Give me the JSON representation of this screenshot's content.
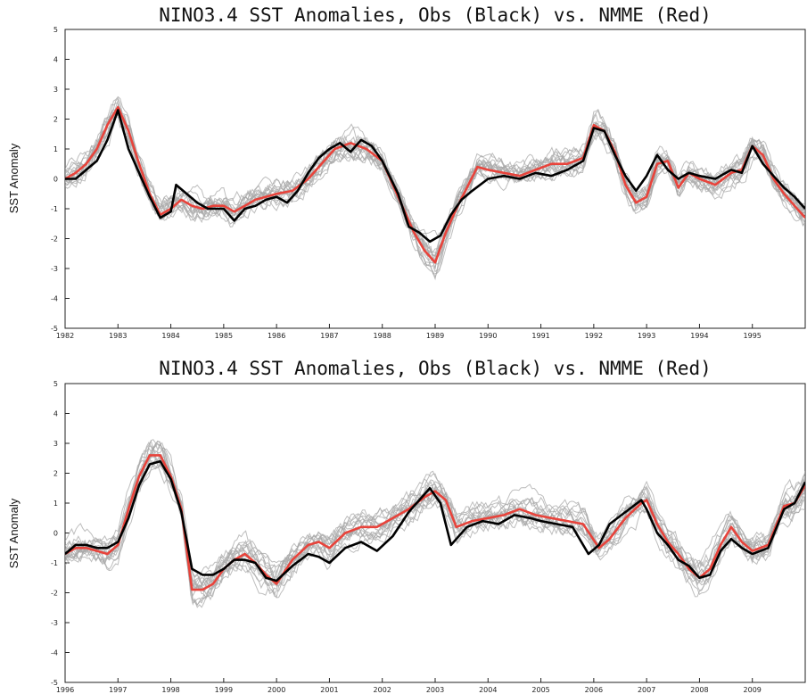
{
  "chart_data": [
    {
      "type": "line",
      "title": "NINO3.4 SST Anomalies, Obs (Black) vs. NMME (Red)",
      "xlabel": "",
      "ylabel": "SST Anomaly",
      "ylim": [
        -5,
        5
      ],
      "xlim": [
        1982,
        1996
      ],
      "yticks": [
        5,
        4,
        3,
        2,
        1,
        0,
        -1,
        -2,
        -3,
        -4,
        -5
      ],
      "xticks": [
        "1982",
        "1983",
        "1984",
        "1985",
        "1986",
        "1987",
        "1988",
        "1989",
        "1990",
        "1991",
        "1992",
        "1993",
        "1994",
        "1995"
      ],
      "grid": false,
      "colors": {
        "obs": "#000000",
        "nmme": "#e8433b",
        "members": "#a8a8a8"
      },
      "series": [
        {
          "name": "Obs",
          "color": "#000000",
          "x": [
            1982.0,
            1982.2,
            1982.4,
            1982.6,
            1982.8,
            1983.0,
            1983.2,
            1983.4,
            1983.6,
            1983.8,
            1984.0,
            1984.1,
            1984.3,
            1984.5,
            1984.7,
            1985.0,
            1985.2,
            1985.4,
            1985.6,
            1985.8,
            1986.0,
            1986.2,
            1986.4,
            1986.6,
            1986.8,
            1987.0,
            1987.2,
            1987.4,
            1987.6,
            1987.8,
            1988.0,
            1988.3,
            1988.5,
            1988.7,
            1988.9,
            1989.1,
            1989.3,
            1989.5,
            1989.7,
            1990.0,
            1990.3,
            1990.6,
            1990.9,
            1991.2,
            1991.5,
            1991.8,
            1992.0,
            1992.2,
            1992.4,
            1992.6,
            1992.8,
            1993.0,
            1993.2,
            1993.4,
            1993.6,
            1993.8,
            1994.0,
            1994.3,
            1994.6,
            1994.8,
            1995.0,
            1995.2,
            1995.4,
            1995.6,
            1995.8,
            1996.0
          ],
          "y": [
            0.0,
            0.0,
            0.3,
            0.6,
            1.3,
            2.3,
            1.0,
            0.2,
            -0.6,
            -1.3,
            -1.1,
            -0.2,
            -0.5,
            -0.8,
            -1.0,
            -1.0,
            -1.4,
            -1.0,
            -0.9,
            -0.7,
            -0.6,
            -0.8,
            -0.4,
            0.2,
            0.7,
            1.0,
            1.2,
            0.9,
            1.3,
            1.1,
            0.6,
            -0.5,
            -1.6,
            -1.8,
            -2.1,
            -1.9,
            -1.2,
            -0.7,
            -0.4,
            0.0,
            0.1,
            0.0,
            0.2,
            0.1,
            0.3,
            0.6,
            1.7,
            1.6,
            0.8,
            0.1,
            -0.4,
            0.1,
            0.8,
            0.3,
            0.0,
            0.2,
            0.1,
            0.0,
            0.3,
            0.2,
            1.1,
            0.5,
            0.1,
            -0.3,
            -0.6,
            -1.0
          ]
        },
        {
          "name": "NMME",
          "color": "#e8433b",
          "x": [
            1982.0,
            1982.2,
            1982.4,
            1982.6,
            1982.8,
            1983.0,
            1983.2,
            1983.4,
            1983.6,
            1983.8,
            1984.0,
            1984.2,
            1984.4,
            1984.6,
            1984.8,
            1985.0,
            1985.2,
            1985.4,
            1985.6,
            1985.8,
            1986.0,
            1986.3,
            1986.6,
            1986.9,
            1987.1,
            1987.4,
            1987.7,
            1988.0,
            1988.2,
            1988.4,
            1988.6,
            1988.8,
            1989.0,
            1989.2,
            1989.4,
            1989.6,
            1989.8,
            1990.0,
            1990.3,
            1990.6,
            1990.9,
            1991.2,
            1991.5,
            1991.8,
            1992.0,
            1992.2,
            1992.4,
            1992.6,
            1992.8,
            1993.0,
            1993.2,
            1993.4,
            1993.6,
            1993.8,
            1994.0,
            1994.3,
            1994.6,
            1994.8,
            1995.0,
            1995.2,
            1995.4,
            1995.6,
            1995.8,
            1996.0
          ],
          "y": [
            0.0,
            0.2,
            0.5,
            1.0,
            1.8,
            2.4,
            1.6,
            0.5,
            -0.5,
            -1.2,
            -1.0,
            -0.7,
            -0.9,
            -1.0,
            -0.9,
            -0.9,
            -1.1,
            -0.9,
            -0.7,
            -0.6,
            -0.5,
            -0.4,
            0.0,
            0.6,
            1.0,
            1.2,
            1.0,
            0.6,
            -0.2,
            -1.0,
            -1.8,
            -2.4,
            -2.8,
            -1.8,
            -1.0,
            -0.3,
            0.4,
            0.3,
            0.2,
            0.1,
            0.3,
            0.5,
            0.5,
            0.7,
            1.8,
            1.6,
            0.9,
            -0.2,
            -0.8,
            -0.6,
            0.5,
            0.6,
            -0.3,
            0.2,
            0.0,
            -0.2,
            0.2,
            0.3,
            1.1,
            0.8,
            0.0,
            -0.5,
            -0.9,
            -1.3
          ]
        }
      ]
    },
    {
      "type": "line",
      "title": "NINO3.4 SST Anomalies, Obs (Black) vs. NMME (Red)",
      "xlabel": "",
      "ylabel": "SST Anomaly",
      "ylim": [
        -5,
        5
      ],
      "xlim": [
        1996,
        2010
      ],
      "yticks": [
        5,
        4,
        3,
        2,
        1,
        0,
        -1,
        -2,
        -3,
        -4,
        -5
      ],
      "xticks": [
        "1996",
        "1997",
        "1998",
        "1999",
        "2000",
        "2001",
        "2002",
        "2003",
        "2004",
        "2005",
        "2006",
        "2007",
        "2008",
        "2009"
      ],
      "grid": false,
      "colors": {
        "obs": "#000000",
        "nmme": "#e8433b",
        "members": "#a8a8a8"
      },
      "series": [
        {
          "name": "Obs",
          "color": "#000000",
          "x": [
            1996.0,
            1996.2,
            1996.4,
            1996.6,
            1996.8,
            1997.0,
            1997.2,
            1997.4,
            1997.6,
            1997.8,
            1998.0,
            1998.2,
            1998.4,
            1998.6,
            1998.8,
            1999.0,
            1999.2,
            1999.4,
            1999.6,
            1999.8,
            2000.0,
            2000.3,
            2000.6,
            2000.8,
            2001.0,
            2001.3,
            2001.6,
            2001.9,
            2002.2,
            2002.5,
            2002.7,
            2002.9,
            2003.1,
            2003.3,
            2003.6,
            2003.9,
            2004.2,
            2004.5,
            2004.8,
            2005.0,
            2005.3,
            2005.6,
            2005.9,
            2006.1,
            2006.3,
            2006.6,
            2006.9,
            2007.0,
            2007.2,
            2007.4,
            2007.6,
            2007.8,
            2008.0,
            2008.2,
            2008.4,
            2008.6,
            2008.8,
            2009.0,
            2009.3,
            2009.6,
            2009.8,
            2010.0
          ],
          "y": [
            -0.7,
            -0.4,
            -0.4,
            -0.5,
            -0.5,
            -0.3,
            0.5,
            1.6,
            2.3,
            2.4,
            1.8,
            0.7,
            -1.2,
            -1.4,
            -1.4,
            -1.2,
            -0.9,
            -0.9,
            -1.0,
            -1.5,
            -1.6,
            -1.1,
            -0.7,
            -0.8,
            -1.0,
            -0.5,
            -0.3,
            -0.6,
            -0.1,
            0.7,
            1.1,
            1.5,
            1.0,
            -0.4,
            0.2,
            0.4,
            0.3,
            0.6,
            0.5,
            0.4,
            0.3,
            0.2,
            -0.7,
            -0.4,
            0.3,
            0.7,
            1.1,
            0.8,
            0.0,
            -0.4,
            -0.9,
            -1.1,
            -1.5,
            -1.4,
            -0.6,
            -0.2,
            -0.5,
            -0.7,
            -0.5,
            0.8,
            1.0,
            1.7
          ]
        },
        {
          "name": "NMME",
          "color": "#e8433b",
          "x": [
            1996.0,
            1996.2,
            1996.4,
            1996.6,
            1996.8,
            1997.0,
            1997.2,
            1997.4,
            1997.6,
            1997.8,
            1998.0,
            1998.2,
            1998.4,
            1998.6,
            1998.8,
            1999.0,
            1999.2,
            1999.4,
            1999.6,
            1999.8,
            2000.0,
            2000.3,
            2000.6,
            2000.8,
            2001.0,
            2001.3,
            2001.6,
            2001.9,
            2002.2,
            2002.5,
            2002.8,
            2003.0,
            2003.2,
            2003.4,
            2003.7,
            2004.0,
            2004.3,
            2004.6,
            2004.9,
            2005.2,
            2005.5,
            2005.8,
            2006.1,
            2006.3,
            2006.6,
            2006.9,
            2007.0,
            2007.2,
            2007.4,
            2007.6,
            2007.8,
            2008.0,
            2008.2,
            2008.4,
            2008.6,
            2008.8,
            2009.0,
            2009.3,
            2009.6,
            2009.8,
            2010.0
          ],
          "y": [
            -0.7,
            -0.5,
            -0.5,
            -0.6,
            -0.7,
            -0.4,
            0.8,
            1.9,
            2.6,
            2.6,
            1.9,
            0.8,
            -1.9,
            -1.9,
            -1.7,
            -1.2,
            -0.9,
            -0.7,
            -1.0,
            -1.4,
            -1.7,
            -0.9,
            -0.4,
            -0.3,
            -0.5,
            0.0,
            0.2,
            0.2,
            0.5,
            0.8,
            1.2,
            1.4,
            1.1,
            0.2,
            0.4,
            0.5,
            0.6,
            0.8,
            0.6,
            0.5,
            0.4,
            0.3,
            -0.5,
            -0.2,
            0.5,
            1.0,
            1.1,
            0.3,
            -0.3,
            -0.7,
            -1.2,
            -1.5,
            -1.2,
            -0.4,
            0.2,
            -0.3,
            -0.6,
            -0.4,
            0.9,
            1.0,
            1.6
          ]
        }
      ]
    }
  ]
}
